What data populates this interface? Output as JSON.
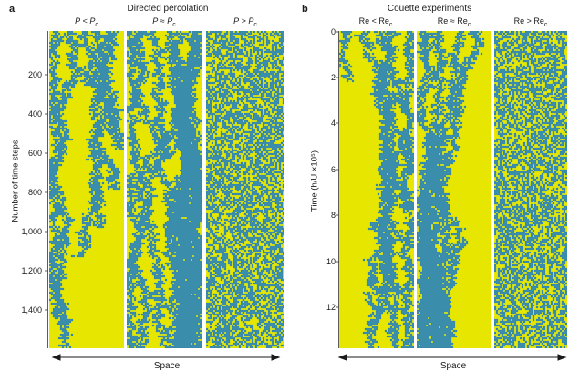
{
  "figure": {
    "left": {
      "letter": "a",
      "title": "Directed percolation",
      "panels": [
        "P < Pc",
        "P ≈ Pc",
        "P > Pc"
      ],
      "y_axis_label": "Number of time steps",
      "y_ticks": [
        "200",
        "400",
        "600",
        "800",
        "1,000",
        "1,200",
        "1,400"
      ],
      "x_axis_label": "Space"
    },
    "right": {
      "letter": "b",
      "title": "Couette experiments",
      "panels": [
        "Re < Rec",
        "Re ≈ Rec",
        "Re > Rec"
      ],
      "y_axis_label": "Time (h/U ×10⁵)",
      "y_ticks": [
        "0",
        "2",
        "4",
        "6",
        "8",
        "10",
        "12"
      ],
      "x_axis_label": "Space"
    }
  },
  "colors": {
    "background": "#e6e600",
    "active": "#2a6fa8",
    "edge": "#4fb0b0"
  }
}
